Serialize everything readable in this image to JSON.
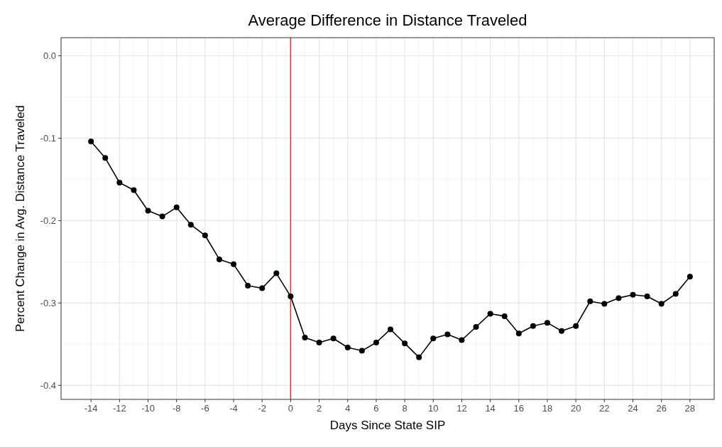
{
  "chart_data": {
    "type": "line",
    "title": "Average Difference in Distance Traveled",
    "xlabel": "Days Since State SIP",
    "ylabel": "Percent Change in Avg. Distance Traveled",
    "x": [
      -14,
      -13,
      -12,
      -11,
      -10,
      -9,
      -8,
      -7,
      -6,
      -5,
      -4,
      -3,
      -2,
      -1,
      0,
      1,
      2,
      3,
      4,
      5,
      6,
      7,
      8,
      9,
      10,
      11,
      12,
      13,
      14,
      15,
      16,
      17,
      18,
      19,
      20,
      21,
      22,
      23,
      24,
      25,
      26,
      27,
      28
    ],
    "series": [
      {
        "color": "#000000",
        "values": [
          -0.104,
          -0.124,
          -0.154,
          -0.163,
          -0.188,
          -0.195,
          -0.184,
          -0.205,
          -0.218,
          -0.247,
          -0.253,
          -0.279,
          -0.282,
          -0.264,
          -0.292,
          -0.342,
          -0.348,
          -0.343,
          -0.354,
          -0.358,
          -0.348,
          -0.332,
          -0.349,
          -0.366,
          -0.343,
          -0.338,
          -0.345,
          -0.329,
          -0.313,
          -0.316,
          -0.337,
          -0.328,
          -0.324,
          -0.334,
          -0.328,
          -0.298,
          -0.301,
          -0.294,
          -0.29,
          -0.292,
          -0.301,
          -0.289,
          -0.268
        ]
      }
    ],
    "xlim": [
      -16.1,
      29.7
    ],
    "xticks": [
      -14,
      -12,
      -10,
      -8,
      -6,
      -4,
      -2,
      0,
      2,
      4,
      6,
      8,
      10,
      12,
      14,
      16,
      18,
      20,
      22,
      24,
      26,
      28
    ],
    "ylim": [
      -0.417,
      0.022
    ],
    "yticks": [
      {
        "value": 0,
        "label": "0.0"
      },
      -0.1,
      -0.2,
      -0.3,
      -0.4
    ],
    "ref_lines": [
      {
        "axis": "x",
        "value": 0,
        "color": "#e8321e"
      }
    ],
    "grid": true,
    "marker": "circle",
    "line_style": "solid"
  }
}
